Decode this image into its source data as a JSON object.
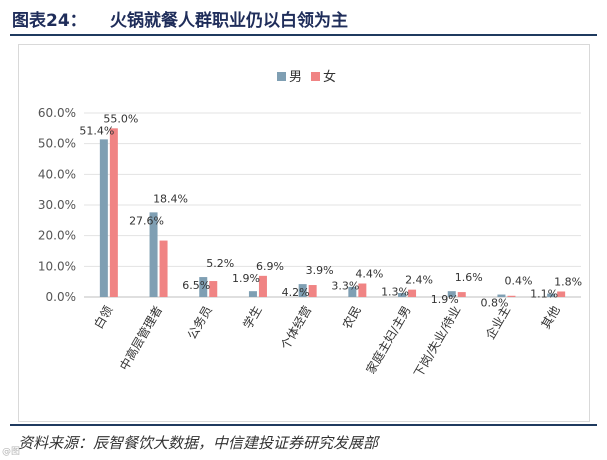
{
  "header": {
    "figure_label": "图表24：",
    "title": "火锅就餐人群职业仍以白领为主"
  },
  "chart_data": {
    "type": "bar",
    "title": "",
    "xlabel": "",
    "ylabel": "",
    "ylim": [
      0,
      60
    ],
    "y_ticks": [
      "0.0%",
      "10.0%",
      "20.0%",
      "30.0%",
      "40.0%",
      "50.0%",
      "60.0%"
    ],
    "legend_position": "top-center",
    "categories": [
      "白领",
      "中高层管理者",
      "公务员",
      "学生",
      "个体经营",
      "农民",
      "家庭主妇/主男",
      "下岗/失业/待业",
      "企业主",
      "其他"
    ],
    "series": [
      {
        "name": "男",
        "color": "#7f9fb3",
        "values": [
          51.4,
          27.6,
          6.5,
          1.9,
          4.2,
          3.3,
          1.3,
          1.9,
          0.8,
          1.1
        ],
        "labels": [
          "51.4%",
          "27.6%",
          "6.5%",
          "1.9%",
          "4.2%",
          "3.3%",
          "1.3%",
          "1.9%",
          "0.8%",
          "1.1%"
        ]
      },
      {
        "name": "女",
        "color": "#f08484",
        "values": [
          55.0,
          18.4,
          5.2,
          6.9,
          3.9,
          4.4,
          2.4,
          1.6,
          0.4,
          1.8
        ],
        "labels": [
          "55.0%",
          "18.4%",
          "5.2%",
          "6.9%",
          "3.9%",
          "4.4%",
          "2.4%",
          "1.6%",
          "0.4%",
          "1.8%"
        ]
      }
    ]
  },
  "source": "资料来源：辰智餐饮大数据，中信建投证券研究发展部",
  "watermark": "@图"
}
